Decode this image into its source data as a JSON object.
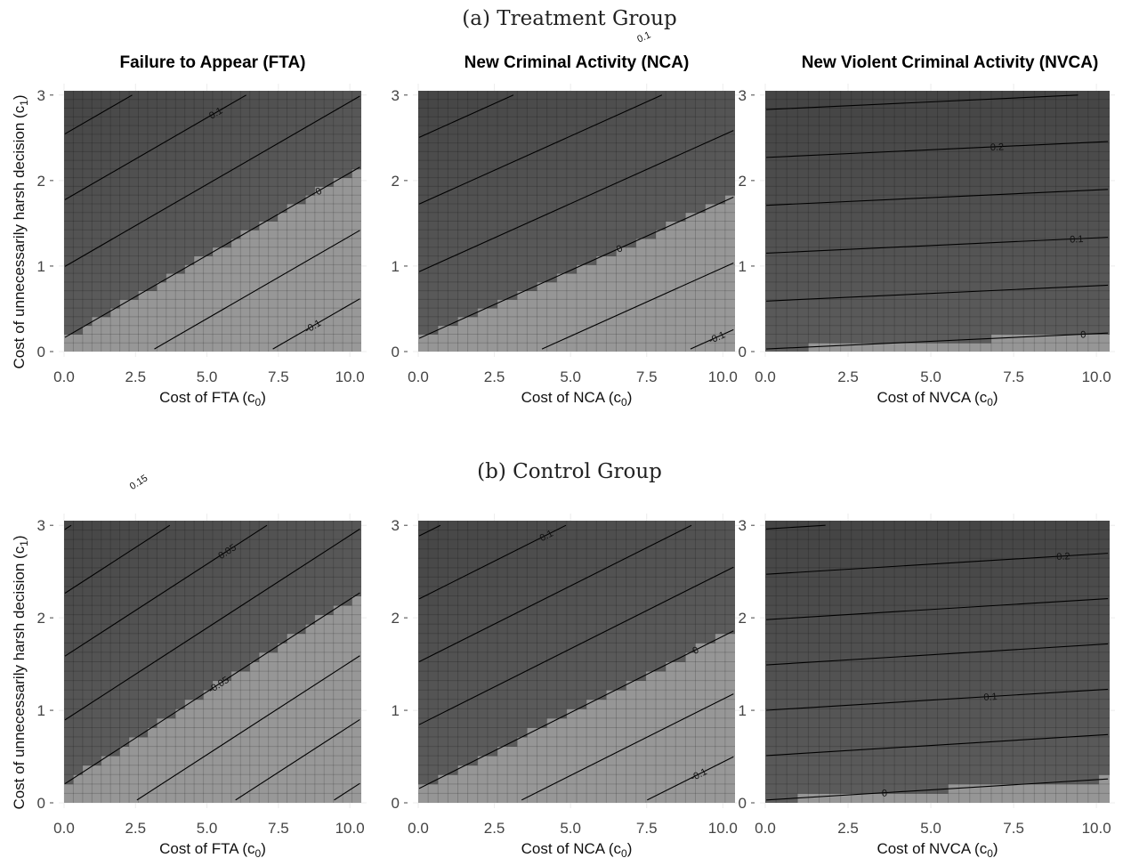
{
  "colors": {
    "dark_region": "#545454",
    "light_region": "#979797",
    "contour": "#000000"
  },
  "chart_data": [
    {
      "type": "heatmap",
      "group": "(a) Treatment Group",
      "title": "Failure to Appear (FTA)",
      "xlabel": "Cost of FTA (c",
      "xlabel_sub": "0",
      "xlabel_end": ")",
      "ylabel": "Cost of unnecessarily harsh decision (c",
      "ylabel_sub": "1",
      "ylabel_end": ")",
      "xlim": [
        0,
        10.4
      ],
      "ylim": [
        0,
        3.05
      ],
      "xticks": [
        "0.0",
        "2.5",
        "5.0",
        "7.5",
        "10.0"
      ],
      "xtick_values": [
        0,
        2.5,
        5,
        7.5,
        10
      ],
      "yticks": [
        "0",
        "1",
        "2",
        "3"
      ],
      "ytick_values": [
        0,
        1,
        2,
        3
      ],
      "boundary": {
        "y_at_x0": 0.16,
        "slope": 0.193,
        "above": "dark",
        "below": "light"
      },
      "contours": {
        "slope": 0.193,
        "intercepts": [
          2.54,
          1.77,
          0.99,
          0.16,
          -0.58,
          -1.38
        ],
        "labels": [
          {
            "text": "0.1",
            "x": 5.3
          },
          {
            "text": "0",
            "x": 8.9
          },
          {
            "text": "-0.1",
            "x": 8.7
          }
        ]
      }
    },
    {
      "type": "heatmap",
      "group": "(a) Treatment Group",
      "title": "New Criminal Activity (NCA)",
      "xlabel": "Cost of NCA (c",
      "xlabel_sub": "0",
      "xlabel_end": ")",
      "xlim": [
        0,
        10.4
      ],
      "ylim": [
        0,
        3.05
      ],
      "xticks": [
        "0.0",
        "2.5",
        "5.0",
        "7.5",
        "10.0"
      ],
      "xtick_values": [
        0,
        2.5,
        5,
        7.5,
        10
      ],
      "yticks": [
        "0",
        "1",
        "2",
        "3"
      ],
      "ytick_values": [
        0,
        1,
        2,
        3
      ],
      "boundary": {
        "y_at_x0": 0.15,
        "slope": 0.16,
        "above": "dark",
        "below": "light"
      },
      "contours": {
        "slope": 0.16,
        "intercepts": [
          2.5,
          1.72,
          0.93,
          0.15,
          -0.62,
          -1.4
        ],
        "labels": [
          {
            "text": "0.1",
            "x": 7.4
          },
          {
            "text": "0",
            "x": 6.6
          },
          {
            "text": "-0.1",
            "x": 9.8
          }
        ]
      }
    },
    {
      "type": "heatmap",
      "group": "(a) Treatment Group",
      "title": "New Violent Criminal Activity (NVCA)",
      "xlabel": "Cost of NVCA (c",
      "xlabel_sub": "0",
      "xlabel_end": ")",
      "xlim": [
        0,
        10.4
      ],
      "ylim": [
        0,
        3.05
      ],
      "xticks": [
        "0.0",
        "2.5",
        "5.0",
        "7.5",
        "10.0"
      ],
      "xtick_values": [
        0,
        2.5,
        5,
        7.5,
        10
      ],
      "yticks": [
        "0",
        "1",
        "2",
        "3"
      ],
      "ytick_values": [
        0,
        1,
        2,
        3
      ],
      "boundary": {
        "y_at_x0": 0.03,
        "slope": 0.018,
        "above": "dark",
        "below": "light"
      },
      "contours": {
        "slope": 0.018,
        "intercepts": [
          2.83,
          2.27,
          1.71,
          1.15,
          0.59,
          0.03
        ],
        "labels": [
          {
            "text": "0.2",
            "x": 7.0
          },
          {
            "text": "0.1",
            "x": 9.4
          },
          {
            "text": "0",
            "x": 9.6
          }
        ]
      }
    },
    {
      "type": "heatmap",
      "group": "(b) Control Group",
      "title": "",
      "xlabel": "Cost of FTA (c",
      "xlabel_sub": "0",
      "xlabel_end": ")",
      "ylabel": "Cost of unnecessarily harsh decision (c",
      "ylabel_sub": "1",
      "ylabel_end": ")",
      "xlim": [
        0,
        10.4
      ],
      "ylim": [
        0,
        3.05
      ],
      "xticks": [
        "0.0",
        "2.5",
        "5.0",
        "7.5",
        "10.0"
      ],
      "xtick_values": [
        0,
        2.5,
        5,
        7.5,
        10
      ],
      "yticks": [
        "0",
        "1",
        "2",
        "3"
      ],
      "ytick_values": [
        0,
        1,
        2,
        3
      ],
      "boundary": {
        "y_at_x0": 0.2,
        "slope": 0.2,
        "above": "dark",
        "below": "light"
      },
      "contours": {
        "slope": 0.2,
        "intercepts": [
          2.95,
          2.26,
          1.58,
          0.89,
          0.2,
          -0.48,
          -1.17,
          -1.86
        ],
        "labels": [
          {
            "text": "0.15",
            "x": 2.6
          },
          {
            "text": "0.05",
            "x": 5.7
          },
          {
            "text": "-0.05",
            "x": 5.4
          }
        ]
      }
    },
    {
      "type": "heatmap",
      "group": "(b) Control Group",
      "title": "",
      "xlabel": "Cost of NCA (c",
      "xlabel_sub": "0",
      "xlabel_end": ")",
      "xlim": [
        0,
        10.4
      ],
      "ylim": [
        0,
        3.05
      ],
      "xticks": [
        "0.0",
        "2.5",
        "5.0",
        "7.5",
        "10.0"
      ],
      "xtick_values": [
        0,
        2.5,
        5,
        7.5,
        10
      ],
      "yticks": [
        "0",
        "1",
        "2",
        "3"
      ],
      "ytick_values": [
        0,
        1,
        2,
        3
      ],
      "boundary": {
        "y_at_x0": 0.15,
        "slope": 0.165,
        "above": "dark",
        "below": "light"
      },
      "contours": {
        "slope": 0.165,
        "intercepts": [
          2.88,
          2.2,
          1.52,
          0.84,
          0.15,
          -0.53,
          -1.21
        ],
        "labels": [
          {
            "text": "0.1",
            "x": 4.2
          },
          {
            "text": "0",
            "x": 9.1
          },
          {
            "text": "-0.1",
            "x": 9.2
          }
        ]
      }
    },
    {
      "type": "heatmap",
      "group": "(b) Control Group",
      "title": "",
      "xlabel": "Cost of NVCA (c",
      "xlabel_sub": "0",
      "xlabel_end": ")",
      "xlim": [
        0,
        10.4
      ],
      "ylim": [
        0,
        3.05
      ],
      "xticks": [
        "0.0",
        "2.5",
        "5.0",
        "7.5",
        "10.0"
      ],
      "xtick_values": [
        0,
        2.5,
        5,
        7.5,
        10
      ],
      "yticks": [
        "0",
        "1",
        "2",
        "3"
      ],
      "ytick_values": [
        0,
        1,
        2,
        3
      ],
      "boundary": {
        "y_at_x0": 0.03,
        "slope": 0.022,
        "above": "dark",
        "below": "light"
      },
      "contours": {
        "slope": 0.022,
        "intercepts": [
          2.96,
          2.47,
          1.98,
          1.49,
          1.0,
          0.51,
          0.03
        ],
        "labels": [
          {
            "text": "0.2",
            "x": 9.0
          },
          {
            "text": "0.1",
            "x": 6.8
          },
          {
            "text": "0",
            "x": 3.6
          }
        ]
      }
    }
  ],
  "groups": {
    "a": "(a) Treatment Group",
    "b": "(b) Control Group"
  }
}
